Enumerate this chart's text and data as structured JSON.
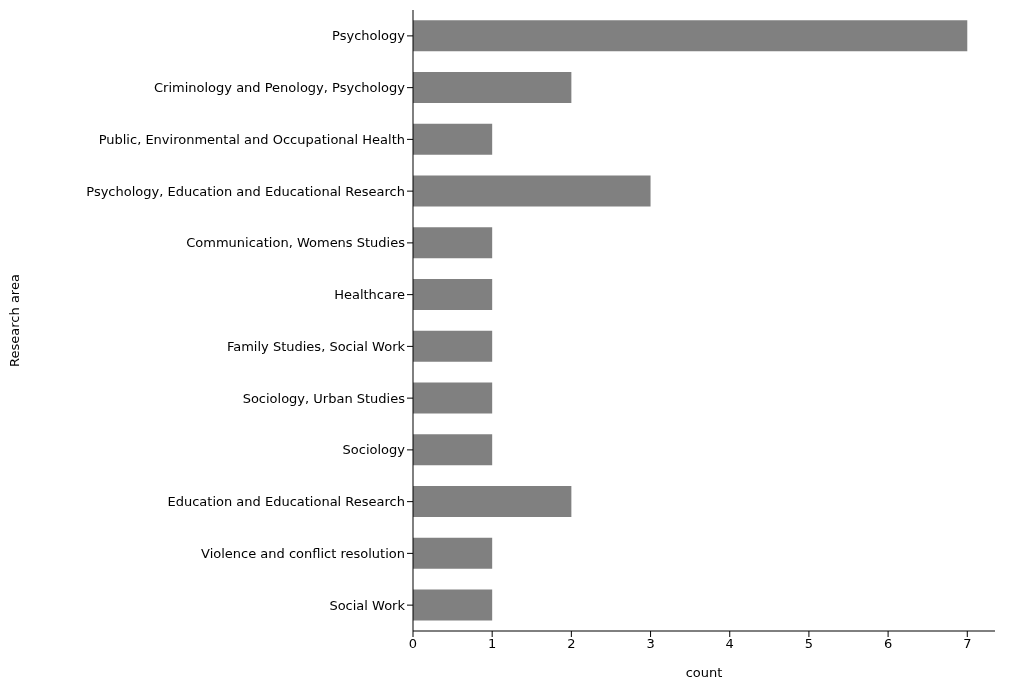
{
  "chart_data": {
    "type": "bar",
    "orientation": "horizontal",
    "xlabel": "count",
    "ylabel": "Research area",
    "categories": [
      "Psychology",
      "Criminology and Penology, Psychology",
      "Public, Environmental and Occupational Health",
      "Psychology, Education and Educational Research",
      "Communication, Womens Studies",
      "Healthcare",
      "Family Studies, Social Work",
      "Sociology, Urban Studies",
      "Sociology",
      "Education and Educational Research",
      "Violence and conflict resolution",
      "Social Work"
    ],
    "values": [
      7,
      2,
      1,
      3,
      1,
      1,
      1,
      1,
      1,
      2,
      1,
      1
    ],
    "color": "#808080",
    "xlim": [
      0,
      7.35
    ],
    "xticks": [
      0,
      1,
      2,
      3,
      4,
      5,
      6,
      7
    ],
    "grid": false,
    "legend": false
  }
}
